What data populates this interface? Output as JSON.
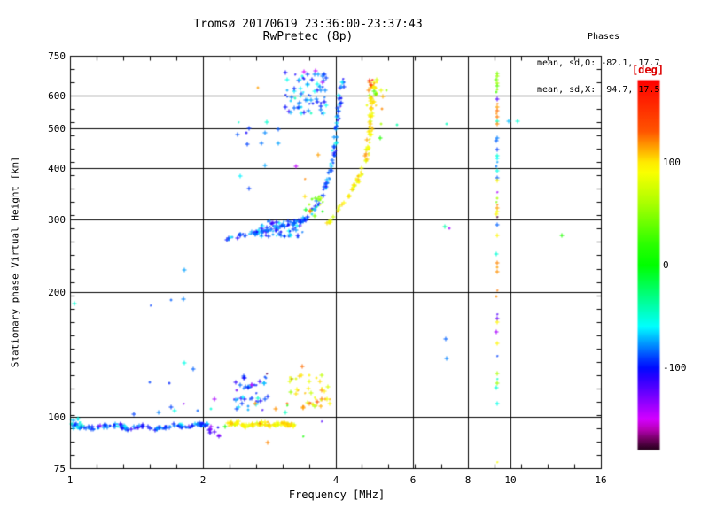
{
  "title": {
    "line1": "Tromsø 20170619 23:36:00-23:37:43",
    "line2": "RwPretec (8p)"
  },
  "annotations": {
    "phases_header": "Phases",
    "phases_o": "mean, sd,O: -82.1, 17.7",
    "phases_x": "mean, sd,X:  94.7, 17.5"
  },
  "axes": {
    "x": {
      "label": "Frequency [MHz]",
      "scale": "log",
      "range": [
        1,
        16
      ],
      "major_ticks": [
        1,
        2,
        4,
        6,
        8,
        10,
        16
      ],
      "gridlines": [
        2,
        4,
        6,
        8,
        10
      ]
    },
    "y": {
      "label": "Stationary phase Virtual Height [km]",
      "scale": "log",
      "range": [
        75,
        750
      ],
      "major_ticks": [
        750,
        600,
        500,
        400,
        300,
        200,
        100,
        75
      ],
      "gridlines": [
        600,
        500,
        400,
        300,
        200,
        100
      ]
    }
  },
  "colorbar": {
    "label": "[deg]",
    "label_color": "#dd0000",
    "range": [
      -180,
      180
    ],
    "tick_labels": [
      100,
      0,
      -100
    ]
  },
  "chart_data": {
    "type": "scatter",
    "x_unit": "MHz",
    "y_unit": "km",
    "color_unit": "deg",
    "series": [
      {
        "name": "E-region O-mode trace",
        "type": "trace",
        "anchors": [
          [
            1.0,
            96
          ],
          [
            1.08,
            94
          ],
          [
            1.18,
            95
          ],
          [
            1.28,
            96
          ],
          [
            1.34,
            94
          ],
          [
            1.45,
            95.5
          ],
          [
            1.55,
            93.5
          ],
          [
            1.65,
            95
          ],
          [
            1.75,
            96
          ],
          [
            1.85,
            94.5
          ],
          [
            1.95,
            96
          ],
          [
            2.05,
            96.5
          ]
        ],
        "n": 130,
        "jx": 1.5,
        "jy": 2,
        "phase_mean": -88,
        "phase_sd": 16
      },
      {
        "name": "E-trace start blob",
        "type": "cluster",
        "f_range": [
          1.0,
          1.06
        ],
        "h_range": [
          92,
          101
        ],
        "n": 14,
        "phase_mean": -60,
        "phase_sd": 14
      },
      {
        "name": "E-trace dark dip",
        "type": "cluster",
        "f_range": [
          2.05,
          2.2
        ],
        "h_range": [
          90,
          95
        ],
        "n": 11,
        "phase_mean": -118,
        "phase_sd": 16
      },
      {
        "name": "E-region X-mode trace",
        "type": "trace",
        "anchors": [
          [
            2.26,
            96
          ],
          [
            2.4,
            97
          ],
          [
            2.5,
            95
          ],
          [
            2.62,
            96.5
          ],
          [
            2.75,
            97
          ],
          [
            2.88,
            95.5
          ],
          [
            3.0,
            97
          ],
          [
            3.1,
            96
          ],
          [
            3.2,
            96.5
          ]
        ],
        "n": 100,
        "jx": 1.5,
        "jy": 2,
        "phase_mean": 95,
        "phase_sd": 11
      },
      {
        "name": "F-region O-mode flat",
        "type": "trace",
        "anchors": [
          [
            2.26,
            272
          ],
          [
            2.4,
            276
          ],
          [
            2.55,
            279
          ],
          [
            2.7,
            282
          ],
          [
            2.85,
            286
          ],
          [
            3.0,
            290
          ],
          [
            3.15,
            294
          ],
          [
            3.3,
            299
          ],
          [
            3.42,
            305
          ]
        ],
        "n": 75,
        "jx": 2,
        "jy": 2.5,
        "phase_mean": -85,
        "phase_sd": 15
      },
      {
        "name": "F-region O-mode dense core",
        "type": "cluster",
        "f_range": [
          2.7,
          3.35
        ],
        "h_range": [
          274,
          300
        ],
        "n": 55,
        "phase_mean": -85,
        "phase_sd": 18
      },
      {
        "name": "F-region O-mode rise",
        "type": "trace",
        "anchors": [
          [
            3.5,
            312
          ],
          [
            3.6,
            326
          ],
          [
            3.7,
            342
          ],
          [
            3.78,
            362
          ],
          [
            3.85,
            385
          ],
          [
            3.9,
            408
          ],
          [
            3.94,
            432
          ],
          [
            3.97,
            458
          ],
          [
            4.0,
            490
          ],
          [
            4.03,
            525
          ],
          [
            4.06,
            560
          ],
          [
            4.09,
            600
          ],
          [
            4.12,
            635
          ],
          [
            4.15,
            660
          ]
        ],
        "n": 75,
        "jx": 2,
        "jy": 3,
        "phase_mean": -82,
        "phase_sd": 16
      },
      {
        "name": "O-mode spread-F cloud",
        "type": "cluster",
        "f_range": [
          3.05,
          3.8
        ],
        "h_range": [
          545,
          690
        ],
        "n": 70,
        "phase_mean": -80,
        "phase_sd": 20
      },
      {
        "name": "O-mode satellite scatter",
        "type": "cluster",
        "f_range": [
          2.35,
          3.0
        ],
        "h_range": [
          350,
          520
        ],
        "n": 13,
        "phase_mean": -85,
        "phase_sd": 18
      },
      {
        "name": "X-mode mid cluster",
        "type": "cluster",
        "f_range": [
          3.4,
          3.72
        ],
        "h_range": [
          305,
          352
        ],
        "n": 17,
        "phase_mean": 70,
        "phase_sd": 45
      },
      {
        "name": "F-region X-mode rise",
        "type": "trace",
        "anchors": [
          [
            3.81,
            293
          ],
          [
            3.93,
            308
          ],
          [
            4.08,
            323
          ],
          [
            4.21,
            338
          ],
          [
            4.33,
            353
          ],
          [
            4.43,
            369
          ],
          [
            4.54,
            388
          ],
          [
            4.62,
            408
          ],
          [
            4.69,
            434
          ],
          [
            4.73,
            462
          ],
          [
            4.77,
            490
          ],
          [
            4.79,
            524
          ],
          [
            4.81,
            561
          ],
          [
            4.84,
            603
          ],
          [
            4.86,
            646
          ],
          [
            4.84,
            672
          ]
        ],
        "n": 85,
        "jx": 2,
        "jy": 3,
        "phase_mean": 95,
        "phase_sd": 14
      },
      {
        "name": "X-mode top scatter",
        "type": "cluster",
        "f_range": [
          4.68,
          4.98
        ],
        "h_range": [
          560,
          685
        ],
        "n": 18,
        "phase_mean": 100,
        "phase_sd": 28
      },
      {
        "name": "lower blue cluster",
        "type": "cluster",
        "f_range": [
          2.34,
          2.8
        ],
        "h_range": [
          104,
          127
        ],
        "n": 42,
        "phase_mean": -85,
        "phase_sd": 20
      },
      {
        "name": "lower yellow cluster",
        "type": "cluster",
        "f_range": [
          3.08,
          3.88
        ],
        "h_range": [
          104,
          127
        ],
        "n": 40,
        "phase_mean": 95,
        "phase_sd": 17
      },
      {
        "name": "interference streak 9.3 MHz",
        "type": "points",
        "pts": [
          [
            9.25,
            683,
            45
          ],
          [
            9.26,
            672,
            55
          ],
          [
            9.24,
            660,
            40
          ],
          [
            9.26,
            648,
            60
          ],
          [
            9.25,
            637,
            35
          ],
          [
            9.25,
            626,
            50
          ],
          [
            9.24,
            614,
            30
          ],
          [
            9.25,
            593,
            -120
          ],
          [
            9.25,
            577,
            120
          ],
          [
            9.26,
            566,
            115
          ],
          [
            9.25,
            556,
            125
          ],
          [
            9.24,
            546,
            118
          ],
          [
            9.25,
            537,
            122
          ],
          [
            9.25,
            524,
            -45
          ],
          [
            9.26,
            516,
            120
          ],
          [
            9.25,
            477,
            -80
          ],
          [
            9.24,
            470,
            -85
          ],
          [
            9.25,
            446,
            -90
          ],
          [
            9.25,
            432,
            -50
          ],
          [
            9.26,
            424,
            -60
          ],
          [
            9.25,
            417,
            -75
          ],
          [
            9.24,
            407,
            -80
          ],
          [
            9.25,
            397,
            -55
          ],
          [
            9.25,
            382,
            -85
          ],
          [
            9.27,
            376,
            95
          ],
          [
            9.25,
            352,
            -140
          ],
          [
            9.25,
            340,
            60
          ],
          [
            9.24,
            334,
            45
          ],
          [
            9.25,
            328,
            120
          ],
          [
            9.26,
            322,
            115
          ],
          [
            9.25,
            316,
            90
          ],
          [
            9.24,
            311,
            95
          ],
          [
            9.25,
            307,
            -175
          ],
          [
            9.25,
            294,
            -85
          ],
          [
            9.25,
            276,
            95
          ],
          [
            9.24,
            249,
            -50
          ],
          [
            9.25,
            237,
            120
          ],
          [
            9.26,
            231,
            115
          ],
          [
            9.25,
            226,
            118
          ],
          [
            9.25,
            203,
            122
          ],
          [
            9.24,
            197,
            118
          ],
          [
            9.25,
            178,
            -120
          ],
          [
            9.26,
            174,
            -125
          ],
          [
            9.27,
            170,
            95
          ],
          [
            9.24,
            161,
            -140
          ],
          [
            9.25,
            151,
            95
          ],
          [
            9.25,
            141,
            -90
          ],
          [
            9.25,
            128,
            60
          ],
          [
            9.26,
            124,
            -45
          ],
          [
            9.25,
            121,
            55
          ],
          [
            9.24,
            118,
            -50
          ],
          [
            9.25,
            108,
            -55
          ],
          [
            9.25,
            78,
            90
          ]
        ]
      },
      {
        "name": "isolated echoes",
        "type": "points",
        "pts": [
          [
            1.02,
            189,
            -50
          ],
          [
            1.52,
            187,
            -90
          ],
          [
            1.69,
            193,
            -85
          ],
          [
            1.8,
            194,
            -80
          ],
          [
            1.81,
            228,
            -75
          ],
          [
            1.81,
            136,
            -55
          ],
          [
            1.51,
            122,
            -90
          ],
          [
            1.67,
            121,
            -95
          ],
          [
            1.69,
            106,
            -90
          ],
          [
            1.72,
            104,
            -55
          ],
          [
            1.8,
            108,
            -135
          ],
          [
            1.89,
            131,
            -85
          ],
          [
            2.12,
            111,
            -140
          ],
          [
            2.08,
            105,
            -50
          ],
          [
            1.39,
            102,
            -90
          ],
          [
            1.58,
            103,
            -80
          ],
          [
            1.94,
            104,
            -85
          ],
          [
            2.65,
            631,
            115
          ],
          [
            3.24,
            406,
            -145
          ],
          [
            3.39,
            379,
            120
          ],
          [
            3.63,
            434,
            115
          ],
          [
            3.58,
            694,
            -145
          ],
          [
            3.38,
            690,
            -150
          ],
          [
            3.73,
            650,
            -140
          ],
          [
            3.7,
            98,
            -120
          ],
          [
            3.36,
            90,
            10
          ],
          [
            2.24,
            95,
            8
          ],
          [
            3.19,
            95,
            92
          ],
          [
            2.62,
            108,
            120
          ],
          [
            2.91,
            105,
            118
          ],
          [
            3.09,
            108,
            125
          ],
          [
            3.37,
            106,
            115
          ],
          [
            3.47,
            108,
            120
          ],
          [
            3.62,
            109,
            130
          ],
          [
            2.8,
            87,
            120
          ],
          [
            2.57,
            120,
            -150
          ],
          [
            2.78,
            128,
            -172
          ],
          [
            3.34,
            133,
            125
          ],
          [
            3.1,
            107,
            15
          ],
          [
            3.07,
            103,
            -45
          ],
          [
            4.83,
            660,
            165
          ],
          [
            4.8,
            640,
            150
          ],
          [
            4.88,
            620,
            30
          ],
          [
            4.92,
            610,
            25
          ],
          [
            5.05,
            621,
            85
          ],
          [
            5.1,
            600,
            110
          ],
          [
            5.08,
            561,
            120
          ],
          [
            5.05,
            516,
            60
          ],
          [
            5.02,
            476,
            15
          ],
          [
            5.19,
            621,
            55
          ],
          [
            5.49,
            513,
            -40
          ],
          [
            7.13,
            516,
            -45
          ],
          [
            9.82,
            524,
            -70
          ],
          [
            10.32,
            524,
            -50
          ],
          [
            7.06,
            290,
            -40
          ],
          [
            7.23,
            288,
            -140
          ],
          [
            7.1,
            155,
            -85
          ],
          [
            7.13,
            139,
            -80
          ],
          [
            13.0,
            276,
            15
          ]
        ]
      }
    ]
  }
}
